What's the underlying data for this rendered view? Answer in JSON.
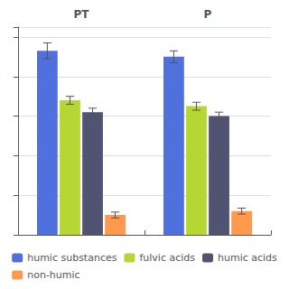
{
  "chart_data": {
    "type": "bar",
    "categories": [
      "PT",
      "P"
    ],
    "series": [
      {
        "name": "humic substances",
        "values": [
          0.93,
          0.9
        ],
        "errors": [
          0.04,
          0.03
        ]
      },
      {
        "name": "fulvic acids",
        "values": [
          0.68,
          0.65
        ],
        "errors": [
          0.02,
          0.02
        ]
      },
      {
        "name": "humic acids",
        "values": [
          0.62,
          0.6
        ],
        "errors": [
          0.02,
          0.02
        ]
      },
      {
        "name": "non-humic",
        "values": [
          0.1,
          0.12
        ],
        "errors": [
          0.015,
          0.015
        ]
      }
    ],
    "ylim": [
      0,
      1.05
    ],
    "yticks": [
      0,
      0.2,
      0.4,
      0.6,
      0.8,
      1.0
    ],
    "grid": true,
    "legend": "bottom",
    "tick_labels": "x"
  }
}
